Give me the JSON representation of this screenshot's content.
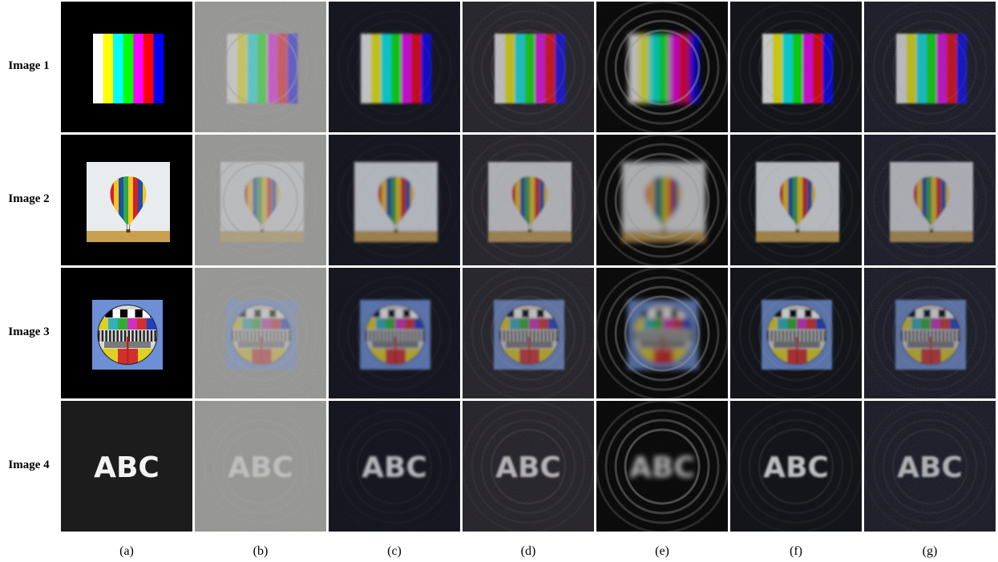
{
  "rows": [
    {
      "label": "Image 1",
      "content": "color-bars"
    },
    {
      "label": "Image 2",
      "content": "hot-air-balloon"
    },
    {
      "label": "Image 3",
      "content": "tv-test-card"
    },
    {
      "label": "Image 4",
      "content": "text",
      "text": "ABC"
    }
  ],
  "columns": [
    {
      "label": "(a)",
      "variant": "ground-truth"
    },
    {
      "label": "(b)",
      "variant": "noisy-ringing"
    },
    {
      "label": "(c)",
      "variant": "smooth-tinted"
    },
    {
      "label": "(d)",
      "variant": "dark-textured"
    },
    {
      "label": "(e)",
      "variant": "blurred-rings"
    },
    {
      "label": "(f)",
      "variant": "dark-clean"
    },
    {
      "label": "(g)",
      "variant": "dark-noisy"
    }
  ],
  "bar_colors": [
    "#ffffff",
    "#ffff00",
    "#00ffff",
    "#00ff00",
    "#ff00ff",
    "#ff0000",
    "#0000ff"
  ],
  "balloon_stripes": [
    "#d4202a",
    "#f2c81b",
    "#1f4fa8",
    "#2fa84a",
    "#f2c81b",
    "#d4202a",
    "#1f4fa8",
    "#f2c81b"
  ],
  "test_card_colors": [
    "#ffffff",
    "#000000",
    "#e0d020",
    "#30b0c0",
    "#30b030",
    "#d030c0",
    "#d03030",
    "#2040c0"
  ]
}
